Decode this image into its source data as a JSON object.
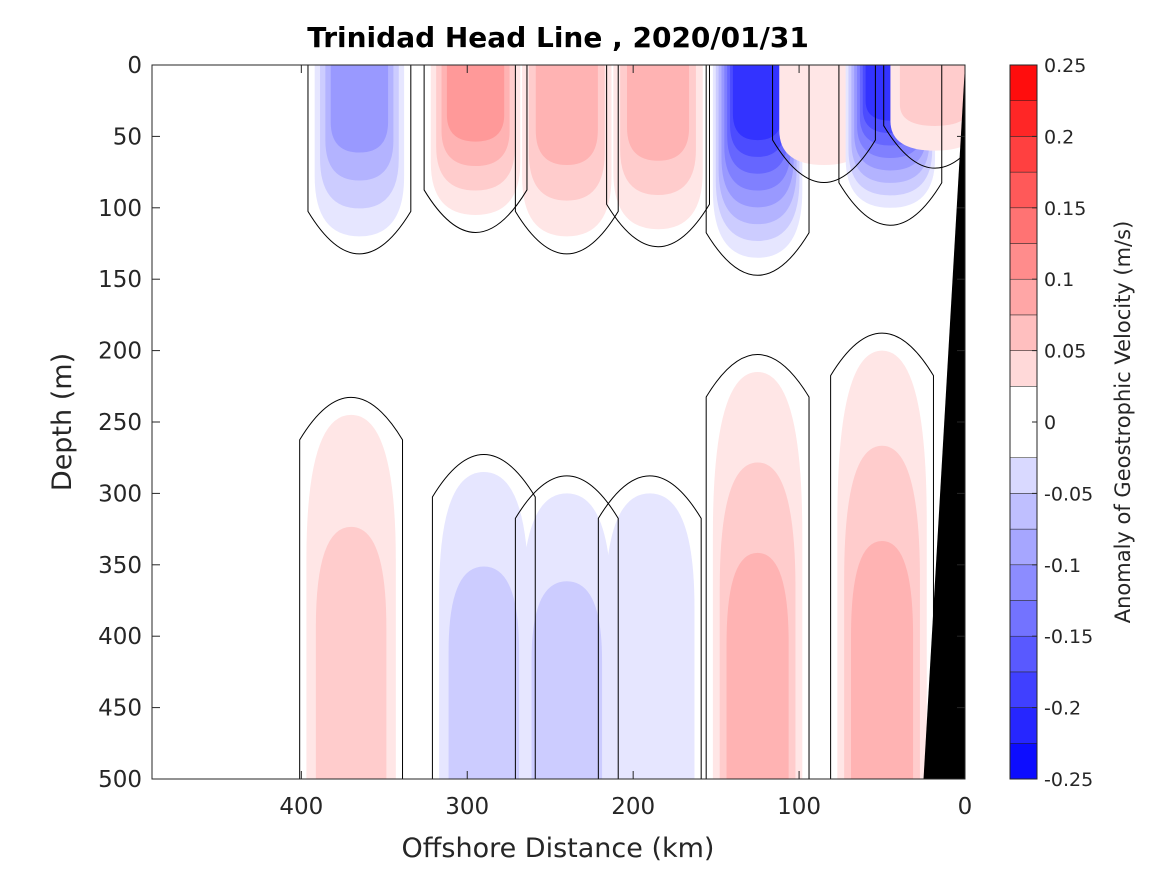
{
  "chart_data": {
    "type": "heatmap",
    "subtype": "filled-contour",
    "title": "Trinidad Head Line , 2020/01/31",
    "xlabel": "Offshore Distance (km)",
    "ylabel": "Depth (m)",
    "xlim": [
      490,
      0
    ],
    "x_direction": "reversed",
    "ylim": [
      500,
      0
    ],
    "y_direction": "reversed",
    "x_ticks": [
      "400",
      "300",
      "200",
      "100",
      "0"
    ],
    "x_tick_values": [
      400,
      300,
      200,
      100,
      0
    ],
    "y_ticks": [
      "0",
      "50",
      "100",
      "150",
      "200",
      "250",
      "300",
      "350",
      "400",
      "450",
      "500"
    ],
    "y_tick_values": [
      0,
      50,
      100,
      150,
      200,
      250,
      300,
      350,
      400,
      450,
      500
    ],
    "grid": false,
    "colorbar": {
      "label": "Anomaly of Geostrophic Velocity (m/s)",
      "range": [
        -0.25,
        0.25
      ],
      "tick_labels": [
        "0.25",
        "0.2",
        "0.15",
        "0.1",
        "0.05",
        "0",
        "-0.05",
        "-0.1",
        "-0.15",
        "-0.2",
        "-0.25"
      ],
      "tick_values": [
        0.25,
        0.2,
        0.15,
        0.1,
        0.05,
        0,
        -0.05,
        -0.1,
        -0.15,
        -0.2,
        -0.25
      ],
      "levels": [
        -0.25,
        -0.225,
        -0.2,
        -0.175,
        -0.15,
        -0.125,
        -0.1,
        -0.075,
        -0.05,
        -0.025,
        0.025,
        0.05,
        0.075,
        0.1,
        0.125,
        0.15,
        0.175,
        0.2,
        0.225,
        0.25
      ],
      "colormap": "blue-white-red",
      "color_negative": "#0000ff",
      "color_zero": "#ffffff",
      "color_positive": "#ff0000"
    },
    "features": [
      {
        "kind": "blob",
        "x_center": 365,
        "depth_top": 0,
        "depth_bottom": 120,
        "peak_value": -0.1
      },
      {
        "kind": "blob",
        "x_center": 295,
        "depth_top": 0,
        "depth_bottom": 105,
        "peak_value": 0.1
      },
      {
        "kind": "blob",
        "x_center": 240,
        "depth_top": 0,
        "depth_bottom": 120,
        "peak_value": 0.075
      },
      {
        "kind": "blob",
        "x_center": 185,
        "depth_top": 0,
        "depth_bottom": 115,
        "peak_value": 0.075
      },
      {
        "kind": "blob",
        "x_center": 125,
        "depth_top": 0,
        "depth_bottom": 135,
        "peak_value": -0.2
      },
      {
        "kind": "blob",
        "x_center": 85,
        "depth_top": 0,
        "depth_bottom": 70,
        "peak_value": 0.035
      },
      {
        "kind": "blob",
        "x_center": 45,
        "depth_top": 0,
        "depth_bottom": 100,
        "peak_value": -0.2
      },
      {
        "kind": "blob",
        "x_center": 18,
        "depth_top": 0,
        "depth_bottom": 60,
        "peak_value": 0.05
      },
      {
        "kind": "blob",
        "x_center": 370,
        "depth_top": 245,
        "depth_bottom": 500,
        "peak_value": 0.05
      },
      {
        "kind": "blob",
        "x_center": 290,
        "depth_top": 285,
        "depth_bottom": 500,
        "peak_value": -0.05
      },
      {
        "kind": "blob",
        "x_center": 240,
        "depth_top": 300,
        "depth_bottom": 500,
        "peak_value": -0.05
      },
      {
        "kind": "blob",
        "x_center": 190,
        "depth_top": 300,
        "depth_bottom": 500,
        "peak_value": -0.035
      },
      {
        "kind": "blob",
        "x_center": 125,
        "depth_top": 215,
        "depth_bottom": 500,
        "peak_value": 0.075
      },
      {
        "kind": "blob",
        "x_center": 50,
        "depth_top": 200,
        "depth_bottom": 500,
        "peak_value": 0.075
      }
    ],
    "bathymetry": {
      "description": "seafloor / land mask shown in black",
      "x_at_surface": 0,
      "depth_at_coast": 0,
      "x_at_bottom": 25,
      "depth_at_bottom": 500,
      "color": "#000000"
    }
  }
}
